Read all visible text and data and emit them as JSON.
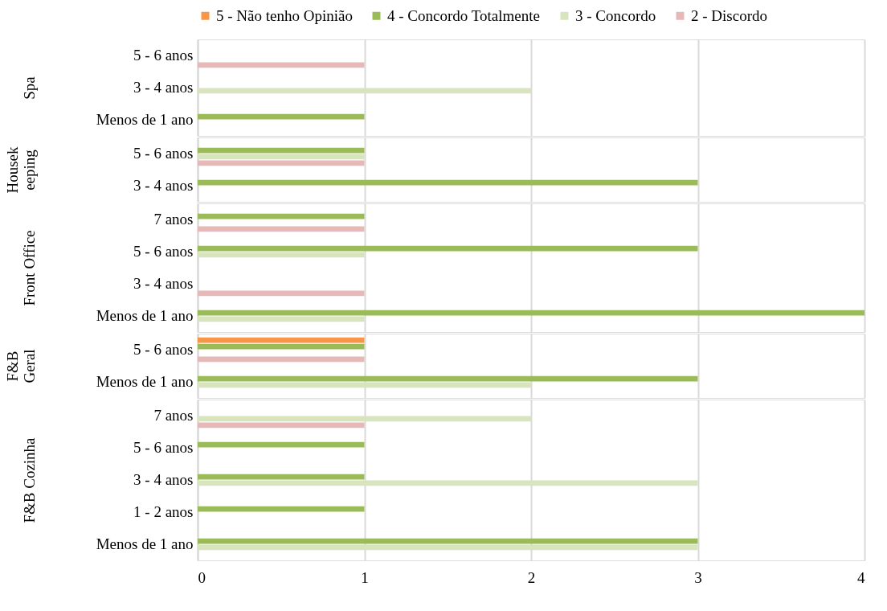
{
  "chart_data": [
    {
      "type": "bar",
      "orientation": "horizontal",
      "ylabel": "Spa",
      "categories": [
        "5 - 6 anos",
        "3 - 4 anos",
        "Menos de 1 ano"
      ],
      "xlim": [
        0,
        4
      ],
      "xticks": [
        0,
        1,
        2,
        3,
        4
      ],
      "grid": "x",
      "tick_labels": "y",
      "legend": "top",
      "series": [
        {
          "name": "5 - Não tenho Opinião",
          "color": "#f79646",
          "values": [
            null,
            null,
            null
          ]
        },
        {
          "name": "4 - Concordo Totalmente",
          "color": "#9bbb59",
          "values": [
            null,
            null,
            1
          ]
        },
        {
          "name": "3 - Concordo",
          "color": "#d7e4bd",
          "values": [
            null,
            2,
            null
          ]
        },
        {
          "name": "2 - Discordo",
          "color": "#e6b9b8",
          "values": [
            1,
            null,
            null
          ]
        }
      ]
    },
    {
      "type": "bar",
      "orientation": "horizontal",
      "ylabel": "Housekeeping",
      "categories": [
        "5 - 6 anos",
        "3 - 4 anos"
      ],
      "xlim": [
        0,
        4
      ],
      "xticks": [
        0,
        1,
        2,
        3,
        4
      ],
      "grid": "x",
      "tick_labels": "y",
      "series": [
        {
          "color": "#f79646",
          "values": [
            null,
            null
          ]
        },
        {
          "color": "#9bbb59",
          "values": [
            1,
            3
          ]
        },
        {
          "color": "#d7e4bd",
          "values": [
            1,
            null
          ]
        },
        {
          "color": "#e6b9b8",
          "values": [
            1,
            null
          ]
        }
      ]
    },
    {
      "type": "bar",
      "orientation": "horizontal",
      "ylabel": "Front Office",
      "categories": [
        "7 anos",
        "5 - 6 anos",
        "3 - 4 anos",
        "Menos de 1 ano"
      ],
      "xlim": [
        0,
        4
      ],
      "xticks": [
        0,
        1,
        2,
        3,
        4
      ],
      "grid": "x",
      "tick_labels": "y",
      "series": [
        {
          "color": "#f79646",
          "values": [
            null,
            null,
            null,
            null
          ]
        },
        {
          "color": "#9bbb59",
          "values": [
            1,
            3,
            null,
            4
          ]
        },
        {
          "color": "#d7e4bd",
          "values": [
            null,
            1,
            null,
            1
          ]
        },
        {
          "color": "#e6b9b8",
          "values": [
            1,
            null,
            1,
            null
          ]
        }
      ]
    },
    {
      "type": "bar",
      "orientation": "horizontal",
      "ylabel": "F&B Geral",
      "categories": [
        "5 - 6 anos",
        "Menos de 1 ano"
      ],
      "xlim": [
        0,
        4
      ],
      "xticks": [
        0,
        1,
        2,
        3,
        4
      ],
      "grid": "x",
      "tick_labels": "y",
      "series": [
        {
          "color": "#f79646",
          "values": [
            1,
            null
          ]
        },
        {
          "color": "#9bbb59",
          "values": [
            1,
            3
          ]
        },
        {
          "color": "#d7e4bd",
          "values": [
            null,
            2
          ]
        },
        {
          "color": "#e6b9b8",
          "values": [
            1,
            null
          ]
        }
      ]
    },
    {
      "type": "bar",
      "orientation": "horizontal",
      "ylabel": "F&B Cozinha",
      "categories": [
        "7 anos",
        "5 - 6 anos",
        "3 - 4 anos",
        "1 - 2 anos",
        "Menos de 1 ano"
      ],
      "xlim": [
        0,
        4
      ],
      "xticks": [
        0,
        1,
        2,
        3,
        4
      ],
      "grid": "x",
      "series": [
        {
          "color": "#f79646",
          "values": [
            null,
            null,
            null,
            null,
            null
          ]
        },
        {
          "color": "#9bbb59",
          "values": [
            null,
            1,
            1,
            1,
            3
          ]
        },
        {
          "color": "#d7e4bd",
          "values": [
            2,
            null,
            3,
            null,
            3
          ]
        },
        {
          "color": "#e6b9b8",
          "values": [
            1,
            null,
            null,
            null,
            null
          ]
        }
      ]
    }
  ]
}
